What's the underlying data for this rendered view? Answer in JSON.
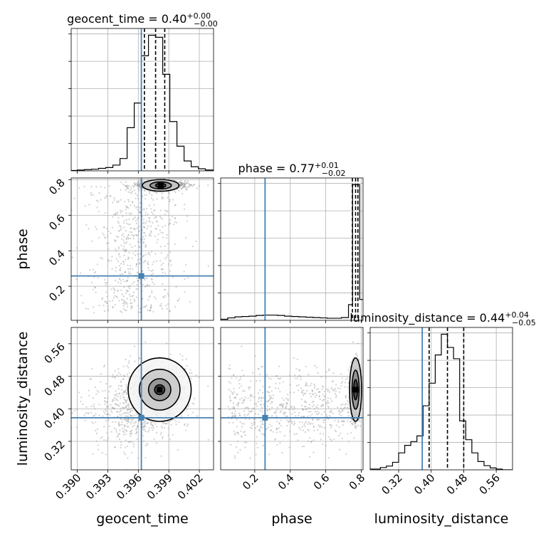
{
  "colors": {
    "truth": "#4682b4",
    "hist": "#000000",
    "grid": "#b0b0b0",
    "points": "#9a9a9a"
  },
  "chart_data": {
    "type": "corner",
    "parameters": [
      "geocent_time",
      "phase",
      "luminosity_distance"
    ],
    "truths": {
      "geocent_time": 0.3963,
      "phase": 0.258,
      "luminosity_distance": 0.378
    },
    "titles": [
      {
        "param": "geocent_time",
        "text": "geocent_time = 0.40",
        "sup": "+0.00",
        "sub": "−0.00"
      },
      {
        "param": "phase",
        "text": "phase = 0.77",
        "sup": "+0.01",
        "sub": "−0.02"
      },
      {
        "param": "luminosity_distance",
        "text": "luminosity_distance = 0.44",
        "sup": "+0.04",
        "sub": "−0.05"
      }
    ],
    "axes": {
      "geocent_time": {
        "range": [
          0.3894,
          0.4034
        ],
        "ticks": [
          0.39,
          0.393,
          0.396,
          0.399,
          0.402
        ],
        "tick_labels": [
          "0.390",
          "0.393",
          "0.396",
          "0.399",
          "0.402"
        ],
        "label": "geocent_time"
      },
      "phase": {
        "range": [
          0.008,
          0.81
        ],
        "ticks": [
          0.2,
          0.4,
          0.6,
          0.8
        ],
        "tick_labels": [
          "0.2",
          "0.4",
          "0.6",
          "0.8"
        ],
        "label": "phase"
      },
      "luminosity_distance": {
        "range": [
          0.25,
          0.6
        ],
        "ticks": [
          0.32,
          0.4,
          0.48,
          0.56
        ],
        "tick_labels": [
          "0.32",
          "0.40",
          "0.48",
          "0.56"
        ],
        "label": "luminosity_distance"
      }
    },
    "histograms": {
      "geocent_time": {
        "edges": [
          0.3894,
          0.39,
          0.3907,
          0.3914,
          0.3921,
          0.3928,
          0.3935,
          0.3942,
          0.3949,
          0.3956,
          0.3963,
          0.397,
          0.3977,
          0.3984,
          0.3991,
          0.3998,
          0.4005,
          0.4012,
          0.4019,
          0.4026,
          0.4034
        ],
        "counts": [
          1,
          2,
          3,
          4,
          6,
          8,
          14,
          30,
          105,
          165,
          280,
          330,
          325,
          235,
          120,
          60,
          24,
          10,
          5,
          2
        ],
        "quantiles": [
          0.3966,
          0.3977,
          0.3986
        ]
      },
      "phase": {
        "edges": [
          0.008,
          0.048,
          0.088,
          0.128,
          0.168,
          0.208,
          0.248,
          0.288,
          0.328,
          0.368,
          0.408,
          0.448,
          0.488,
          0.528,
          0.568,
          0.608,
          0.648,
          0.688,
          0.728,
          0.751,
          0.769,
          0.781,
          0.791,
          0.81
        ],
        "counts": [
          3,
          7,
          10,
          11,
          12,
          14,
          15,
          15,
          14,
          12,
          11,
          10,
          9,
          8,
          7,
          6,
          6,
          8,
          45,
          390,
          390,
          390,
          60
        ],
        "quantiles": [
          0.75,
          0.768,
          0.781
        ]
      },
      "luminosity_distance": {
        "edges": [
          0.25,
          0.275,
          0.29,
          0.305,
          0.32,
          0.335,
          0.35,
          0.365,
          0.38,
          0.395,
          0.41,
          0.425,
          0.44,
          0.455,
          0.47,
          0.485,
          0.5,
          0.515,
          0.53,
          0.545,
          0.56,
          0.575,
          0.6
        ],
        "counts": [
          2,
          6,
          10,
          20,
          45,
          65,
          75,
          90,
          170,
          230,
          305,
          360,
          325,
          295,
          130,
          80,
          45,
          22,
          11,
          5,
          2,
          0
        ],
        "quantiles": [
          0.395,
          0.44,
          0.48
        ]
      }
    },
    "scatter_pairs": [
      "phase|geocent_time",
      "luminosity_distance|geocent_time",
      "luminosity_distance|phase"
    ],
    "contours": {
      "phase|geocent_time": [
        {
          "center": [
            0.3982,
            0.768
          ],
          "radii": [
            0.0018,
            0.033
          ]
        },
        {
          "center": [
            0.3982,
            0.768
          ],
          "radii": [
            0.00105,
            0.02
          ]
        },
        {
          "center": [
            0.3982,
            0.768
          ],
          "radii": [
            0.0005,
            0.012
          ]
        }
      ],
      "luminosity_distance|geocent_time": [
        {
          "center": [
            0.3981,
            0.447
          ],
          "radii": [
            0.0031,
            0.078
          ]
        },
        {
          "center": [
            0.3981,
            0.447
          ],
          "radii": [
            0.002,
            0.05
          ]
        },
        {
          "center": [
            0.3981,
            0.447
          ],
          "radii": [
            0.0011,
            0.027
          ]
        },
        {
          "center": [
            0.3981,
            0.447
          ],
          "radii": [
            0.0005,
            0.012
          ]
        }
      ],
      "luminosity_distance|phase": [
        {
          "center": [
            0.768,
            0.447
          ],
          "radii": [
            0.034,
            0.078
          ]
        },
        {
          "center": [
            0.768,
            0.447
          ],
          "radii": [
            0.02,
            0.048
          ]
        },
        {
          "center": [
            0.768,
            0.447
          ],
          "radii": [
            0.011,
            0.025
          ]
        }
      ]
    }
  }
}
